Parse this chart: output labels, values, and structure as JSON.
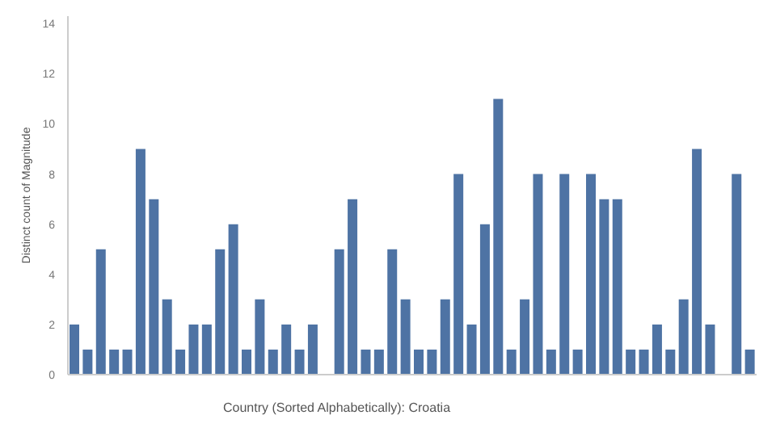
{
  "chart_data": {
    "type": "bar",
    "ylabel": "Distinct count of Magnitude",
    "categories": [
      null,
      null,
      null,
      null,
      null,
      null,
      null,
      null,
      null,
      null,
      null,
      null,
      null,
      null,
      null,
      null,
      null,
      null,
      null,
      null,
      null,
      null,
      null,
      null,
      null,
      null,
      null,
      null,
      null,
      null,
      null,
      null,
      null,
      null,
      null,
      null,
      null,
      null,
      null,
      null,
      null,
      null,
      null,
      null,
      null,
      null,
      null,
      null,
      null,
      null,
      null,
      null
    ],
    "values": [
      2,
      1,
      5,
      1,
      1,
      9,
      7,
      3,
      1,
      2,
      2,
      5,
      6,
      1,
      3,
      1,
      2,
      1,
      2,
      null,
      5,
      7,
      1,
      1,
      5,
      3,
      1,
      1,
      3,
      8,
      2,
      6,
      11,
      1,
      3,
      8,
      1,
      8,
      1,
      8,
      7,
      7,
      1,
      1,
      2,
      1,
      3,
      9,
      2,
      null,
      8,
      1
    ],
    "color": "#4e73a4",
    "ylim": [
      0,
      14.3
    ],
    "yticks": [
      0,
      2,
      4,
      6,
      8,
      10,
      12,
      14
    ],
    "grid": false,
    "annotations": [
      "Country (Sorted Alphabetically): Croatia"
    ]
  }
}
